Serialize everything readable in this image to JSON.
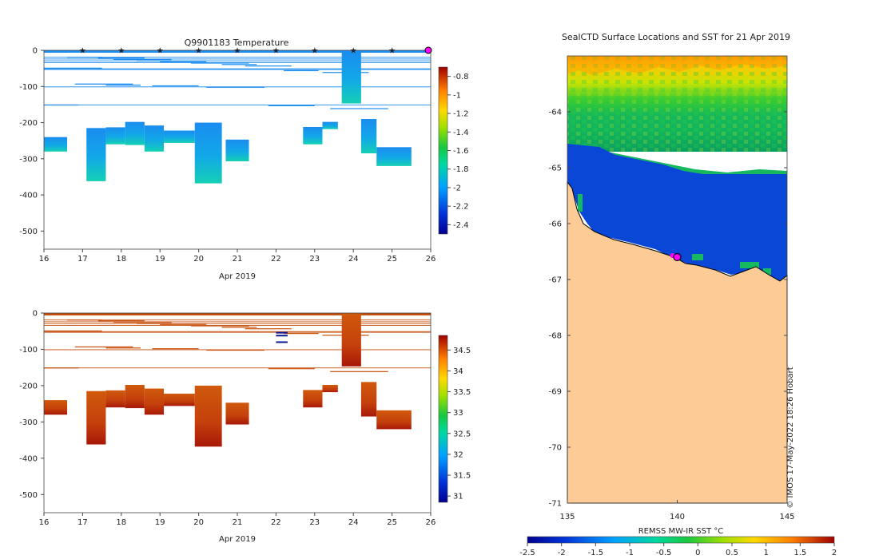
{
  "chart_data": [
    {
      "id": "temperature",
      "type": "heatmap",
      "title": "Q9901183  Temperature",
      "xlabel": "Apr 2019",
      "xticks": [
        "16",
        "17",
        "18",
        "19",
        "20",
        "21",
        "22",
        "23",
        "24",
        "25",
        "26"
      ],
      "xlim": [
        16,
        26
      ],
      "yticks": [
        "0",
        "-100",
        "-200",
        "-300",
        "-400",
        "-500"
      ],
      "ylim": [
        -550,
        0
      ],
      "colorbar": {
        "ticks": [
          "-0.8",
          "-1",
          "-1.2",
          "-1.4",
          "-1.6",
          "-1.8",
          "-2",
          "-2.2",
          "-2.4"
        ],
        "range": [
          -2.5,
          -0.7
        ]
      },
      "surface_markers_days": [
        17,
        18,
        19,
        20,
        21,
        22,
        23,
        24,
        25
      ],
      "end_marker_day": 26
    },
    {
      "id": "salinity",
      "type": "heatmap",
      "title": "",
      "xlabel": "Apr 2019",
      "xticks": [
        "16",
        "17",
        "18",
        "19",
        "20",
        "21",
        "22",
        "23",
        "24",
        "25",
        "26"
      ],
      "xlim": [
        16,
        26
      ],
      "yticks": [
        "0",
        "-100",
        "-200",
        "-300",
        "-400",
        "-500"
      ],
      "ylim": [
        -550,
        0
      ],
      "colorbar": {
        "ticks": [
          "34.5",
          "34",
          "33.5",
          "33",
          "32.5",
          "32",
          "31.5",
          "31"
        ],
        "range": [
          30.85,
          34.85
        ]
      }
    },
    {
      "id": "sst_map",
      "type": "heatmap",
      "title": "SealCTD Surface Locations and SST for 21 Apr 2019",
      "xticks": [
        "135",
        "140",
        "145"
      ],
      "xlim": [
        135,
        145
      ],
      "yticks": [
        "-64",
        "-65",
        "-66",
        "-67",
        "-68",
        "-69",
        "-70",
        "-71"
      ],
      "ylim": [
        -71,
        -63
      ],
      "colorbar": {
        "label": "REMSS MW-IR SST °C",
        "ticks": [
          "-2.5",
          "-2",
          "-1.5",
          "-1",
          "-0.5",
          "0",
          "0.5",
          "1",
          "1.5",
          "2"
        ],
        "range": [
          -2.5,
          2
        ]
      },
      "seal_location": {
        "lon": 140,
        "lat": -66.6
      }
    }
  ],
  "credit": "© IMOS 17-May-2022 18:26 Hobart",
  "colors": {
    "marker": "#ff00ff",
    "land": "#fccb96",
    "ice_blue": "#0a47d6"
  }
}
